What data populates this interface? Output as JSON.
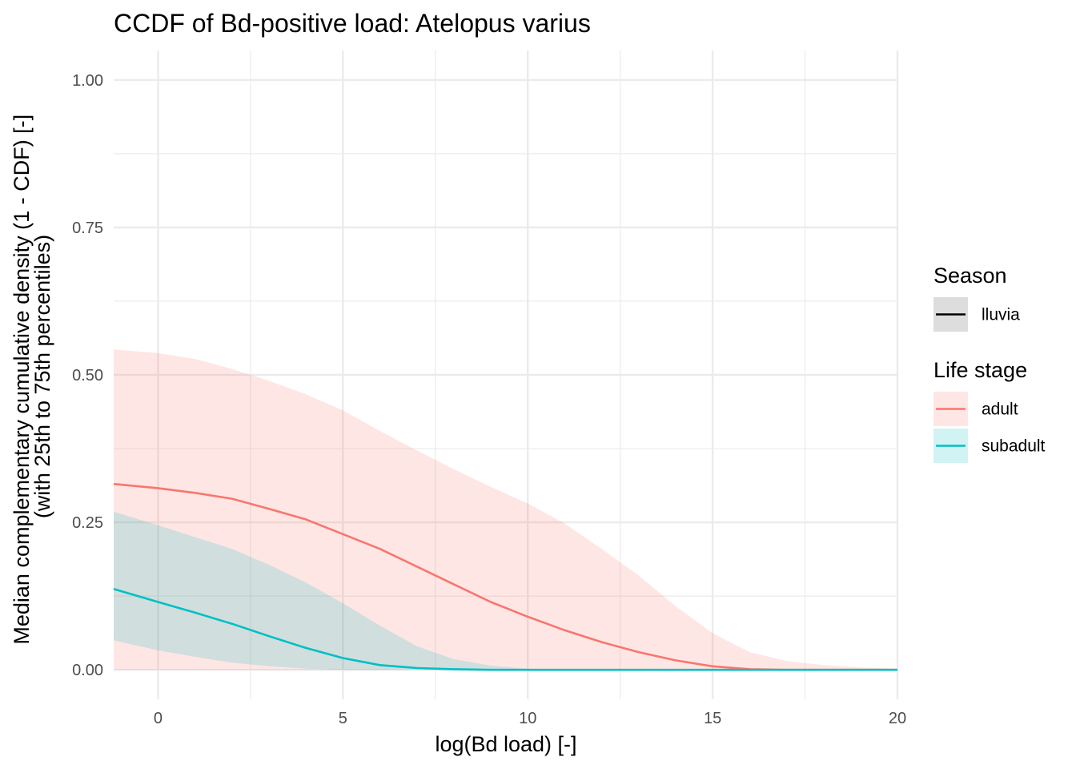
{
  "chart_data": {
    "type": "area",
    "title": "CCDF of Bd-positive load: Atelopus varius",
    "xlabel": "log(Bd load) [-]",
    "ylabel": [
      "Median complementary cumulative density (1 - CDF) [-]",
      "(with 25th to 75th percentiles)"
    ],
    "xlim": [
      -1.2,
      20
    ],
    "ylim": [
      -0.05,
      1.05
    ],
    "x_ticks": [
      0,
      5,
      10,
      15,
      20
    ],
    "x_tick_labels": [
      "0",
      "5",
      "10",
      "15",
      "20"
    ],
    "y_ticks": [
      0,
      0.25,
      0.5,
      0.75,
      1.0
    ],
    "y_tick_labels": [
      "0.00",
      "0.25",
      "0.50",
      "0.75",
      "1.00"
    ],
    "grid": true,
    "legend_position": "right",
    "legends": [
      {
        "title": "Season",
        "entries": [
          {
            "label": "lluvia",
            "kind": "season",
            "color": "#000000"
          }
        ]
      },
      {
        "title": "Life stage",
        "entries": [
          {
            "label": "adult",
            "kind": "stage",
            "color": "#F8766D"
          },
          {
            "label": "subadult",
            "kind": "stage",
            "color": "#00BFC4"
          }
        ]
      }
    ],
    "series": [
      {
        "name": "adult",
        "season": "lluvia",
        "color": "#F8766D",
        "x": [
          -1.2,
          0,
          1,
          2,
          3,
          4,
          5,
          6,
          7,
          8,
          9,
          10,
          11,
          12,
          13,
          14,
          15,
          16,
          17,
          18,
          19,
          20
        ],
        "median": [
          0.315,
          0.308,
          0.3,
          0.29,
          0.273,
          0.255,
          0.23,
          0.205,
          0.175,
          0.145,
          0.115,
          0.09,
          0.067,
          0.047,
          0.03,
          0.016,
          0.006,
          0.001,
          0.0,
          0.0,
          0.0,
          0.0
        ],
        "q25": [
          0.0,
          0.0,
          0.0,
          0.0,
          0.0,
          0.0,
          0.0,
          0.0,
          0.002,
          0.0,
          0.0,
          0.0,
          0.0,
          0.0,
          0.0,
          0.0,
          0.0,
          0.0,
          0.0,
          0.0,
          0.0,
          0.0
        ],
        "q75": [
          0.543,
          0.537,
          0.527,
          0.51,
          0.49,
          0.467,
          0.44,
          0.405,
          0.372,
          0.34,
          0.31,
          0.282,
          0.248,
          0.205,
          0.16,
          0.108,
          0.062,
          0.03,
          0.015,
          0.008,
          0.004,
          0.002
        ]
      },
      {
        "name": "subadult",
        "season": "lluvia",
        "color": "#00BFC4",
        "x": [
          -1.2,
          0,
          1,
          2,
          3,
          4,
          5,
          6,
          7,
          8,
          9,
          10,
          11,
          12,
          13,
          14,
          15,
          16,
          17,
          18,
          19,
          20
        ],
        "median": [
          0.137,
          0.115,
          0.097,
          0.078,
          0.057,
          0.037,
          0.02,
          0.008,
          0.003,
          0.001,
          0.0,
          0.0,
          0.0,
          0.0,
          0.0,
          0.0,
          0.0,
          0.0,
          0.0,
          0.0,
          0.0,
          0.0
        ],
        "q25": [
          0.05,
          0.033,
          0.022,
          0.012,
          0.006,
          0.002,
          0.0,
          0.0,
          0.0,
          0.0,
          0.0,
          0.0,
          0.0,
          0.0,
          0.0,
          0.0,
          0.0,
          0.0,
          0.0,
          0.0,
          0.0,
          0.0
        ],
        "q75": [
          0.268,
          0.245,
          0.225,
          0.205,
          0.178,
          0.148,
          0.113,
          0.075,
          0.04,
          0.018,
          0.007,
          0.002,
          0.0,
          0.0,
          0.0,
          0.0,
          0.0,
          0.0,
          0.0,
          0.0,
          0.0,
          0.0
        ]
      }
    ]
  }
}
